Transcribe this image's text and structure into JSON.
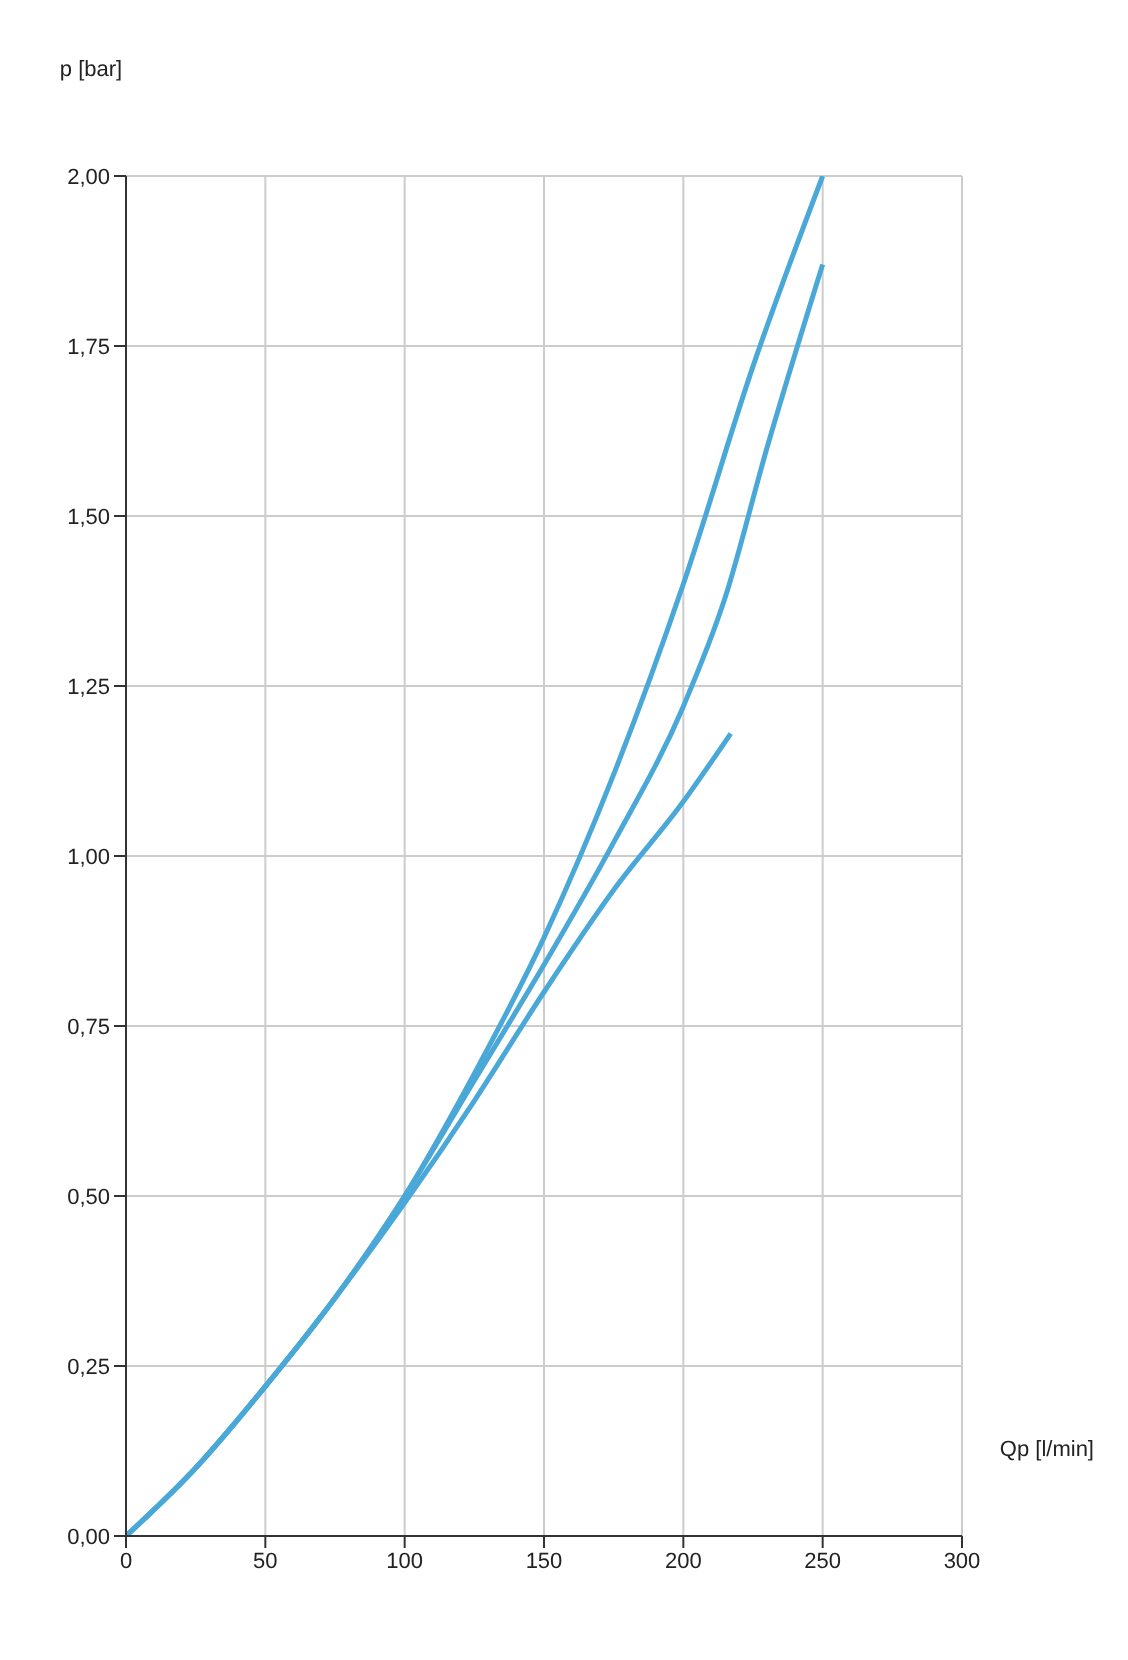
{
  "chart_data": {
    "type": "line",
    "xlabel": "Qp [l/min]",
    "ylabel": "p [bar]",
    "xlim": [
      0,
      300
    ],
    "xticks": [
      0,
      50,
      100,
      150,
      200,
      250,
      300
    ],
    "ylim": [
      0,
      2
    ],
    "yticks": [
      {
        "value": 0,
        "label": "0,00"
      },
      {
        "value": 0.25,
        "label": "0,25"
      },
      {
        "value": 0.5,
        "label": "0,50"
      },
      {
        "value": 0.75,
        "label": "0,75"
      },
      {
        "value": 1,
        "label": "1,00"
      },
      {
        "value": 1.25,
        "label": "1,25"
      },
      {
        "value": 1.5,
        "label": "1,50"
      },
      {
        "value": 1.75,
        "label": "1,75"
      },
      {
        "value": 2,
        "label": "2,00"
      }
    ],
    "grid": true,
    "marker": "none",
    "line_style": "solid",
    "series": [
      {
        "color": "#4aa8d8",
        "x": [
          0,
          25,
          50,
          75,
          100,
          125,
          150,
          175,
          200,
          225,
          250
        ],
        "values": [
          0,
          0.1,
          0.22,
          0.35,
          0.5,
          0.68,
          0.88,
          1.12,
          1.4,
          1.72,
          2.0
        ]
      },
      {
        "color": "#4aa8d8",
        "x": [
          0,
          25,
          50,
          75,
          100,
          125,
          150,
          175,
          200,
          215,
          230,
          250
        ],
        "values": [
          0,
          0.1,
          0.22,
          0.35,
          0.5,
          0.67,
          0.84,
          1.02,
          1.22,
          1.38,
          1.6,
          1.87
        ]
      },
      {
        "color": "#4aa8d8",
        "x": [
          0,
          25,
          50,
          75,
          100,
          125,
          150,
          175,
          200,
          217
        ],
        "values": [
          0,
          0.1,
          0.22,
          0.35,
          0.49,
          0.64,
          0.8,
          0.95,
          1.08,
          1.18
        ]
      }
    ]
  }
}
